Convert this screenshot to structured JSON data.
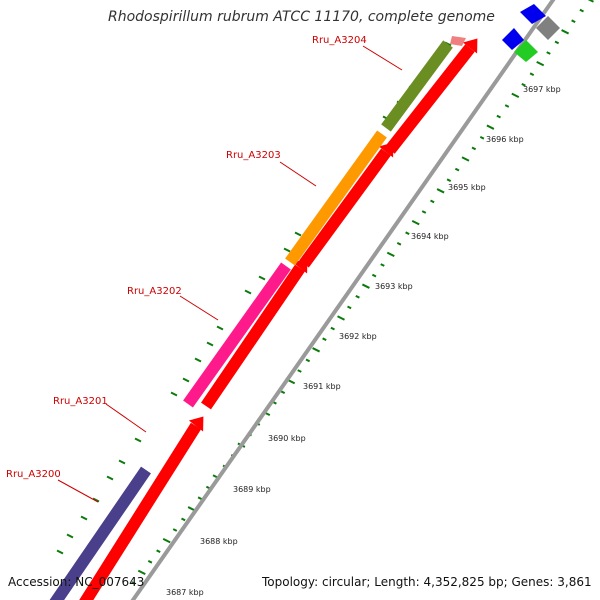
{
  "title": "Rhodospirillum rubrum ATCC 11170, complete genome",
  "accession": "Accession: NC_007643",
  "summary": "Topology: circular; Length: 4,352,825 bp; Genes: 3,861",
  "colors": {
    "forward_track": "#ff0000",
    "backbone": "#9a9a9a",
    "tick": "#0a7a0a",
    "label": "#cc0000",
    "Rru_A3200": "#4a3f8a",
    "Rru_A3202": "#ff1a8c",
    "Rru_A3203": "#ff9900",
    "Rru_A3204": "#6b8e23"
  },
  "gene_labels": [
    "Rru_A3204",
    "Rru_A3203",
    "Rru_A3202",
    "Rru_A3201",
    "Rru_A3200"
  ],
  "kbp_labels": [
    "3697 kbp",
    "3696 kbp",
    "3695 kbp",
    "3694 kbp",
    "3693 kbp",
    "3692 kbp",
    "3691 kbp",
    "3690 kbp",
    "3689 kbp",
    "3688 kbp",
    "3687 kbp"
  ]
}
